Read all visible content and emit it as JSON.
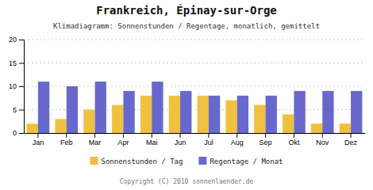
{
  "chart_data": {
    "type": "bar",
    "title": "Frankreich, Épinay-sur-Orge",
    "subtitle": "Klimadiagramm: Sonnenstunden / Regentage, monatlich, gemittelt",
    "annotations": [
      "Copyright (C) 2010 sonnenlaender.de"
    ],
    "categories": [
      "Jan",
      "Feb",
      "Mar",
      "Apr",
      "Mai",
      "Jun",
      "Jul",
      "Aug",
      "Sep",
      "Okt",
      "Nov",
      "Dez"
    ],
    "series": [
      {
        "name": "Sonnenstunden / Tag",
        "color": "#f0c040",
        "values": [
          2,
          3,
          5,
          6,
          8,
          8,
          8,
          7,
          6,
          4,
          2,
          2
        ]
      },
      {
        "name": "Regentage / Monat",
        "color": "#6868cc",
        "values": [
          11,
          10,
          11,
          9,
          11,
          9,
          8,
          8,
          8,
          9,
          9,
          9
        ]
      }
    ],
    "ylim": [
      0,
      20
    ],
    "yticks": [
      0,
      5,
      10,
      15,
      20
    ],
    "grid": true,
    "legend": "bottom"
  }
}
